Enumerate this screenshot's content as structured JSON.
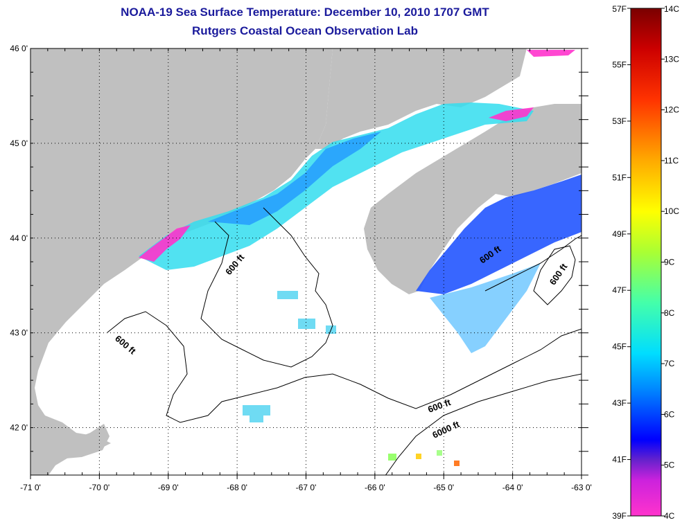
{
  "title": {
    "line1": "NOAA-19 Sea Surface Temperature:  December 10, 2010 1707 GMT",
    "line2": "Rutgers Coastal Ocean Observation Lab"
  },
  "map": {
    "lon_range": [
      -71,
      -63
    ],
    "lat_range": [
      41.5,
      46
    ],
    "x_ticks": [
      "-71 0'",
      "-70 0'",
      "-69 0'",
      "-68 0'",
      "-67 0'",
      "-66 0'",
      "-65 0'",
      "-64 0'",
      "-63 0'"
    ],
    "y_ticks": [
      "46 0'",
      "45 0'",
      "44 0'",
      "43 0'",
      "42 0'"
    ],
    "grid": "dotted",
    "land_color": "#c0c0c0",
    "water_color": "#ffffff",
    "contour_labels": [
      {
        "text": "600 ft",
        "lon": -68.0,
        "lat": 43.7,
        "angle": -50
      },
      {
        "text": "600 ft",
        "lon": -69.65,
        "lat": 42.85,
        "angle": 40
      },
      {
        "text": "600 ft",
        "lon": -64.3,
        "lat": 43.8,
        "angle": -35
      },
      {
        "text": "600 ft",
        "lon": -63.3,
        "lat": 43.6,
        "angle": -55
      },
      {
        "text": "600 ft",
        "lon": -65.05,
        "lat": 42.2,
        "angle": -20
      },
      {
        "text": "6000 ft",
        "lon": -64.95,
        "lat": 41.95,
        "angle": -25
      }
    ]
  },
  "colorbar": {
    "f_labels": [
      "57F",
      "55F",
      "53F",
      "51F",
      "49F",
      "47F",
      "45F",
      "43F",
      "41F",
      "39F"
    ],
    "c_labels": [
      "14C",
      "13C",
      "12C",
      "11C",
      "10C",
      "9C",
      "8C",
      "7C",
      "6C",
      "5C",
      "4C"
    ],
    "f_range": [
      39,
      57
    ],
    "c_range": [
      4,
      14
    ],
    "stops": [
      {
        "t": 0.0,
        "color": "#ff33cc"
      },
      {
        "t": 0.07,
        "color": "#cc22dd"
      },
      {
        "t": 0.11,
        "color": "#6622cc"
      },
      {
        "t": 0.15,
        "color": "#0000ff"
      },
      {
        "t": 0.25,
        "color": "#0088ff"
      },
      {
        "t": 0.32,
        "color": "#00ddff"
      },
      {
        "t": 0.42,
        "color": "#44ffaa"
      },
      {
        "t": 0.52,
        "color": "#aaff33"
      },
      {
        "t": 0.6,
        "color": "#ffff00"
      },
      {
        "t": 0.7,
        "color": "#ffaa00"
      },
      {
        "t": 0.82,
        "color": "#ff3300"
      },
      {
        "t": 0.92,
        "color": "#cc0000"
      },
      {
        "t": 1.0,
        "color": "#7a0000"
      }
    ]
  }
}
